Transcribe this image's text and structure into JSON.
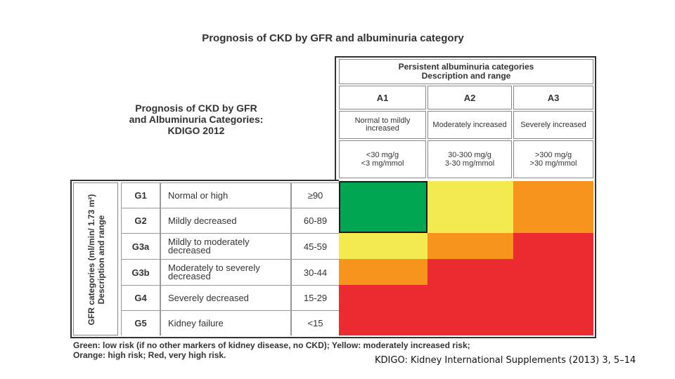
{
  "main_title": "Prognosis of CKD by GFR and albuminuria category",
  "sub_title": {
    "line1": "Prognosis of CKD by GFR",
    "line2": "and Albuminuria Categories:",
    "line3": "KDIGO 2012"
  },
  "albuminuria": {
    "title_line1": "Persistent albuminuria categories",
    "title_line2": "Description and range",
    "categories": [
      {
        "code": "A1",
        "desc": "Normal to mildly increased",
        "range1": "<30 mg/g",
        "range2": "<3 mg/mmol"
      },
      {
        "code": "A2",
        "desc": "Moderately increased",
        "range1": "30-300 mg/g",
        "range2": "3-30 mg/mmol"
      },
      {
        "code": "A3",
        "desc": "Severely increased",
        "range1": ">300 mg/g",
        "range2": ">30 mg/mmol"
      }
    ]
  },
  "gfr": {
    "side_label_line1": "GFR categories (ml/min/ 1.73 m²)",
    "side_label_line2": "Description and range",
    "rows": [
      {
        "code": "G1",
        "desc": "Normal or high",
        "range": "≥90"
      },
      {
        "code": "G2",
        "desc": "Mildly decreased",
        "range": "60-89"
      },
      {
        "code": "G3a",
        "desc": "Mildly to moderately decreased",
        "range": "45-59"
      },
      {
        "code": "G3b",
        "desc": "Moderately to severely decreased",
        "range": "30-44"
      },
      {
        "code": "G4",
        "desc": "Severely decreased",
        "range": "15-29"
      },
      {
        "code": "G5",
        "desc": "Kidney failure",
        "range": "<15"
      }
    ]
  },
  "risk_grid": [
    [
      "green",
      "yellow",
      "orange"
    ],
    [
      "green",
      "yellow",
      "orange"
    ],
    [
      "yellow",
      "orange",
      "red"
    ],
    [
      "orange",
      "red",
      "red"
    ],
    [
      "red",
      "red",
      "red"
    ],
    [
      "red",
      "red",
      "red"
    ]
  ],
  "legend": {
    "line1": "Green: low risk (if no other markers of kidney disease, no CKD); Yellow: moderately increased risk;",
    "line2": "Orange: high risk; Red, very high risk."
  },
  "citation": "KDIGO: Kidney International Supplements (2013) 3, 5–14",
  "colors": {
    "green": "#00a651",
    "yellow": "#f2ea4e",
    "orange": "#f7941d",
    "red": "#ec2b30"
  }
}
